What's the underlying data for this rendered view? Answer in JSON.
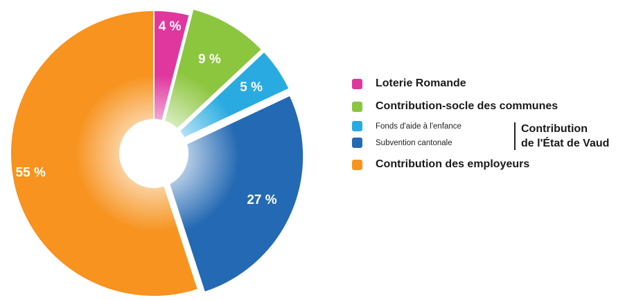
{
  "chart_data": {
    "type": "pie",
    "title": "",
    "slices": [
      {
        "label": "Loterie Romande",
        "value": 4,
        "display": "4 %",
        "color": "#e0379e"
      },
      {
        "label": "Contribution-socle des communes",
        "value": 9,
        "display": "9 %",
        "color": "#8cc63f"
      },
      {
        "label": "Fonds d'aide à l'enfance",
        "value": 5,
        "display": "5 %",
        "color": "#29abe2"
      },
      {
        "label": "Subvention cantonale",
        "value": 27,
        "display": "27 %",
        "color": "#2469b3"
      },
      {
        "label": "Contribution des employeurs",
        "value": 55,
        "display": "55 %",
        "color": "#f7931e"
      }
    ],
    "legend_position": "right",
    "legend_group_label_line1": "Contribution",
    "legend_group_label_line2": "de l'État de Vaud"
  }
}
